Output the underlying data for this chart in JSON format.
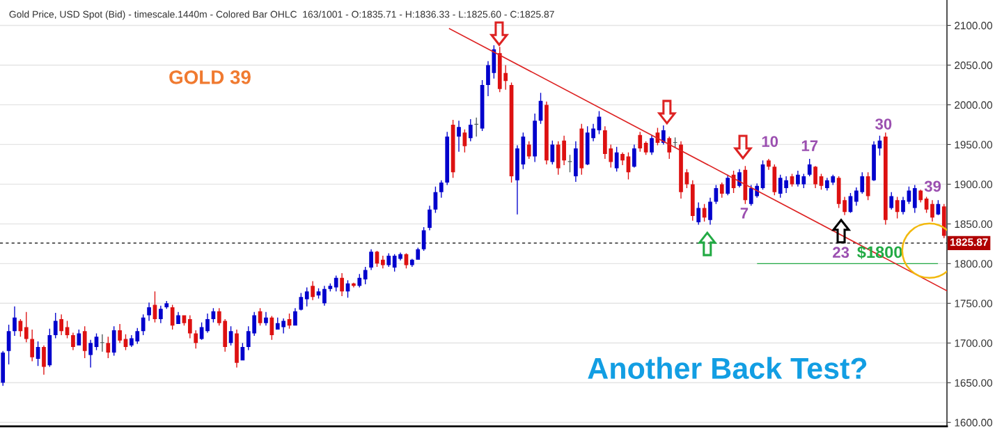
{
  "chart_data": {
    "type": "candlestick",
    "title": "Gold Price, USD Spot (Bid) - timescale.1440m - Colored Bar OHLC  163/1001 - O:1835.71 - H:1836.33 - L:1825.60 - C:1825.87",
    "categories": [
      null,
      null,
      null,
      null,
      null,
      null,
      null,
      null,
      null,
      null,
      null,
      null,
      null,
      null,
      null,
      null,
      null,
      null,
      null,
      null,
      null,
      null,
      null,
      null,
      null,
      null,
      null,
      null,
      null,
      null,
      null,
      null,
      null,
      null,
      null,
      null,
      null,
      null,
      null,
      null,
      null,
      null,
      null,
      null,
      null,
      null,
      null,
      null,
      null,
      null,
      null,
      null,
      null,
      null,
      null,
      null,
      null,
      null,
      null,
      null,
      null,
      null,
      null,
      null,
      null,
      null,
      null,
      null,
      null,
      null,
      null,
      null,
      null,
      null,
      null,
      null,
      null,
      null,
      null,
      null,
      null,
      null,
      null,
      null,
      null,
      null,
      null,
      null,
      null,
      null,
      null,
      null,
      null,
      null,
      null,
      null,
      null,
      null,
      null,
      null,
      null,
      null,
      null,
      null,
      null,
      null,
      null,
      null,
      null,
      null,
      null,
      null,
      null,
      null,
      null,
      null,
      null,
      null,
      null,
      null,
      null,
      null,
      null,
      null,
      null,
      null,
      null,
      null,
      null,
      null,
      null,
      null,
      null,
      null,
      null,
      null,
      null,
      null,
      null,
      null,
      null,
      null,
      null,
      null,
      null,
      null,
      null,
      null,
      null,
      null,
      null,
      null,
      null,
      null,
      null,
      null,
      null,
      null,
      null,
      null,
      null,
      null
    ],
    "ohlc": [
      [
        1650,
        1690,
        1646,
        1688
      ],
      [
        1690,
        1723,
        1673,
        1715
      ],
      [
        1715,
        1746,
        1709,
        1732
      ],
      [
        1728,
        1730,
        1708,
        1715
      ],
      [
        1720,
        1739,
        1701,
        1705
      ],
      [
        1705,
        1717,
        1677,
        1682
      ],
      [
        1680,
        1702,
        1671,
        1695
      ],
      [
        1695,
        1697,
        1660,
        1670
      ],
      [
        1672,
        1718,
        1670,
        1710
      ],
      [
        1710,
        1738,
        1706,
        1728
      ],
      [
        1730,
        1736,
        1710,
        1715
      ],
      [
        1720,
        1728,
        1706,
        1710
      ],
      [
        1710,
        1713,
        1691,
        1695
      ],
      [
        1697,
        1717,
        1697,
        1712
      ],
      [
        1715,
        1721,
        1681,
        1690
      ],
      [
        1685,
        1704,
        1669,
        1700
      ],
      [
        1695,
        1712,
        1691,
        1708
      ],
      [
        1700,
        1711,
        1689,
        1701
      ],
      [
        1700,
        1708,
        1681,
        1688
      ],
      [
        1688,
        1721,
        1684,
        1716
      ],
      [
        1716,
        1724,
        1700,
        1703
      ],
      [
        1705,
        1711,
        1691,
        1695
      ],
      [
        1697,
        1710,
        1695,
        1706
      ],
      [
        1702,
        1719,
        1699,
        1715
      ],
      [
        1715,
        1736,
        1710,
        1732
      ],
      [
        1735,
        1751,
        1728,
        1745
      ],
      [
        1748,
        1765,
        1726,
        1730
      ],
      [
        1730,
        1747,
        1725,
        1743
      ],
      [
        1745,
        1753,
        1743,
        1750
      ],
      [
        1745,
        1748,
        1717,
        1722
      ],
      [
        1724,
        1739,
        1724,
        1735
      ],
      [
        1735,
        1735,
        1722,
        1725
      ],
      [
        1730,
        1735,
        1706,
        1712
      ],
      [
        1712,
        1716,
        1693,
        1700
      ],
      [
        1705,
        1726,
        1704,
        1720
      ],
      [
        1715,
        1737,
        1713,
        1730
      ],
      [
        1730,
        1744,
        1726,
        1740
      ],
      [
        1740,
        1744,
        1722,
        1725
      ],
      [
        1728,
        1730,
        1689,
        1695
      ],
      [
        1700,
        1721,
        1697,
        1715
      ],
      [
        1712,
        1717,
        1669,
        1675
      ],
      [
        1678,
        1700,
        1678,
        1695
      ],
      [
        1695,
        1721,
        1691,
        1715
      ],
      [
        1712,
        1739,
        1709,
        1735
      ],
      [
        1740,
        1744,
        1722,
        1725
      ],
      [
        1725,
        1739,
        1722,
        1732
      ],
      [
        1732,
        1734,
        1704,
        1710
      ],
      [
        1717,
        1732,
        1717,
        1725
      ],
      [
        1720,
        1731,
        1712,
        1728
      ],
      [
        1730,
        1737,
        1718,
        1722
      ],
      [
        1722,
        1744,
        1722,
        1740
      ],
      [
        1742,
        1763,
        1741,
        1758
      ],
      [
        1755,
        1770,
        1746,
        1765
      ],
      [
        1772,
        1778,
        1754,
        1758
      ],
      [
        1760,
        1769,
        1756,
        1765
      ],
      [
        1750,
        1772,
        1747,
        1768
      ],
      [
        1768,
        1775,
        1765,
        1772
      ],
      [
        1770,
        1785,
        1765,
        1782
      ],
      [
        1782,
        1788,
        1759,
        1765
      ],
      [
        1765,
        1779,
        1757,
        1775
      ],
      [
        1775,
        1776,
        1770,
        1772
      ],
      [
        1772,
        1787,
        1770,
        1782
      ],
      [
        1780,
        1796,
        1774,
        1792
      ],
      [
        1795,
        1818,
        1792,
        1815
      ],
      [
        1815,
        1816,
        1796,
        1800
      ],
      [
        1805,
        1810,
        1794,
        1798
      ],
      [
        1798,
        1813,
        1796,
        1810
      ],
      [
        1795,
        1812,
        1790,
        1810
      ],
      [
        1806,
        1814,
        1804,
        1812
      ],
      [
        1812,
        1813,
        1794,
        1798
      ],
      [
        1798,
        1806,
        1796,
        1805
      ],
      [
        1805,
        1820,
        1805,
        1818
      ],
      [
        1818,
        1846,
        1816,
        1842
      ],
      [
        1845,
        1873,
        1842,
        1868
      ],
      [
        1868,
        1897,
        1864,
        1890
      ],
      [
        1890,
        1905,
        1883,
        1902
      ],
      [
        1902,
        1966,
        1899,
        1960
      ],
      [
        1975,
        1981,
        1908,
        1915
      ],
      [
        1960,
        1980,
        1941,
        1972
      ],
      [
        1965,
        1969,
        1940,
        1948
      ],
      [
        1958,
        1982,
        1954,
        1975
      ],
      [
        1975,
        1984,
        1960,
        1976
      ],
      [
        1970,
        2031,
        1967,
        2025
      ],
      [
        2025,
        2055,
        2011,
        2050
      ],
      [
        2040,
        2075,
        2033,
        2070
      ],
      [
        2065,
        2073,
        2016,
        2020
      ],
      [
        2040,
        2050,
        2019,
        2030
      ],
      [
        2025,
        2028,
        1902,
        1910
      ],
      [
        1905,
        1949,
        1862,
        1945
      ],
      [
        1925,
        1965,
        1919,
        1960
      ],
      [
        1950,
        1954,
        1932,
        1935
      ],
      [
        1935,
        1989,
        1928,
        1980
      ],
      [
        1980,
        2015,
        1976,
        2005
      ],
      [
        2000,
        2004,
        1925,
        1930
      ],
      [
        1928,
        1955,
        1925,
        1950
      ],
      [
        1950,
        1954,
        1912,
        1920
      ],
      [
        1955,
        1961,
        1924,
        1930
      ],
      [
        1928,
        1937,
        1915,
        1929
      ],
      [
        1910,
        1954,
        1903,
        1945
      ],
      [
        1970,
        1976,
        1912,
        1920
      ],
      [
        1925,
        1973,
        1924,
        1965
      ],
      [
        1958,
        1976,
        1954,
        1970
      ],
      [
        1968,
        1992,
        1963,
        1985
      ],
      [
        1968,
        1973,
        1932,
        1938
      ],
      [
        1945,
        1950,
        1921,
        1928
      ],
      [
        1920,
        1947,
        1916,
        1940
      ],
      [
        1938,
        1940,
        1924,
        1930
      ],
      [
        1935,
        1940,
        1906,
        1915
      ],
      [
        1922,
        1950,
        1921,
        1945
      ],
      [
        1962,
        1966,
        1941,
        1945
      ],
      [
        1952,
        1954,
        1937,
        1940
      ],
      [
        1940,
        1962,
        1937,
        1958
      ],
      [
        1965,
        1971,
        1949,
        1952
      ],
      [
        1952,
        1974,
        1950,
        1968
      ],
      [
        1958,
        1960,
        1932,
        1940
      ],
      [
        1952,
        1959,
        1946,
        1953
      ],
      [
        1950,
        1954,
        1882,
        1890
      ],
      [
        1915,
        1919,
        1895,
        1900
      ],
      [
        1900,
        1905,
        1854,
        1860
      ],
      [
        1852,
        1877,
        1849,
        1870
      ],
      [
        1870,
        1875,
        1853,
        1858
      ],
      [
        1855,
        1883,
        1849,
        1878
      ],
      [
        1878,
        1899,
        1875,
        1895
      ],
      [
        1900,
        1902,
        1883,
        1888
      ],
      [
        1888,
        1912,
        1886,
        1908
      ],
      [
        1912,
        1917,
        1889,
        1895
      ],
      [
        1898,
        1919,
        1896,
        1915
      ],
      [
        1918,
        1923,
        1875,
        1880
      ],
      [
        1875,
        1899,
        1873,
        1895
      ],
      [
        1885,
        1901,
        1883,
        1898
      ],
      [
        1895,
        1930,
        1893,
        1925
      ],
      [
        1930,
        1932,
        1918,
        1922
      ],
      [
        1922,
        1925,
        1886,
        1890
      ],
      [
        1888,
        1912,
        1883,
        1908
      ],
      [
        1895,
        1910,
        1889,
        1905
      ],
      [
        1910,
        1913,
        1897,
        1900
      ],
      [
        1900,
        1917,
        1897,
        1912
      ],
      [
        1900,
        1913,
        1895,
        1910
      ],
      [
        1912,
        1932,
        1910,
        1925
      ],
      [
        1922,
        1923,
        1895,
        1900
      ],
      [
        1910,
        1913,
        1893,
        1898
      ],
      [
        1895,
        1908,
        1892,
        1905
      ],
      [
        1902,
        1912,
        1899,
        1910
      ],
      [
        1908,
        1910,
        1870,
        1875
      ],
      [
        1880,
        1884,
        1861,
        1865
      ],
      [
        1865,
        1889,
        1864,
        1885
      ],
      [
        1878,
        1896,
        1873,
        1892
      ],
      [
        1890,
        1915,
        1888,
        1910
      ],
      [
        1910,
        1915,
        1880,
        1885
      ],
      [
        1905,
        1954,
        1904,
        1950
      ],
      [
        1945,
        1961,
        1936,
        1955
      ],
      [
        1960,
        1965,
        1849,
        1855
      ],
      [
        1870,
        1890,
        1868,
        1885
      ],
      [
        1880,
        1884,
        1857,
        1865
      ],
      [
        1865,
        1884,
        1862,
        1880
      ],
      [
        1878,
        1897,
        1875,
        1892
      ],
      [
        1870,
        1899,
        1864,
        1895
      ],
      [
        1892,
        1893,
        1877,
        1880
      ],
      [
        1882,
        1884,
        1864,
        1868
      ],
      [
        1875,
        1880,
        1853,
        1858
      ],
      [
        1862,
        1880,
        1861,
        1875
      ],
      [
        1872,
        1875,
        1832,
        1835
      ]
    ],
    "colors": [
      "#0000cc",
      "#0000cc",
      "#0000cc",
      "#dd1111",
      "#dd1111",
      "#dd1111",
      "#0000cc",
      "#dd1111",
      "#0000cc",
      "#0000cc",
      "#dd1111",
      "#dd1111",
      "#dd1111",
      "#0000cc",
      "#dd1111",
      "#0000cc",
      "#0000cc",
      "#4d5b5b",
      "#dd1111",
      "#0000cc",
      "#dd1111",
      "#dd1111",
      "#0000cc",
      "#0000cc",
      "#0000cc",
      "#0000cc",
      "#dd1111",
      "#0000cc",
      "#0000cc",
      "#dd1111",
      "#0000cc",
      "#dd1111",
      "#dd1111",
      "#dd1111",
      "#0000cc",
      "#0000cc",
      "#0000cc",
      "#dd1111",
      "#dd1111",
      "#0000cc",
      "#dd1111",
      "#0000cc",
      "#0000cc",
      "#0000cc",
      "#dd1111",
      "#0000cc",
      "#dd1111",
      "#0000cc",
      "#0000cc",
      "#dd1111",
      "#0000cc",
      "#0000cc",
      "#0000cc",
      "#dd1111",
      "#0000cc",
      "#0000cc",
      "#0000cc",
      "#0000cc",
      "#dd1111",
      "#0000cc",
      "#dd1111",
      "#0000cc",
      "#0000cc",
      "#0000cc",
      "#dd1111",
      "#dd1111",
      "#0000cc",
      "#0000cc",
      "#0000cc",
      "#dd1111",
      "#0000cc",
      "#0000cc",
      "#0000cc",
      "#0000cc",
      "#0000cc",
      "#0000cc",
      "#0000cc",
      "#dd1111",
      "#0000cc",
      "#dd1111",
      "#0000cc",
      "#4d5b5b",
      "#0000cc",
      "#0000cc",
      "#0000cc",
      "#dd1111",
      "#dd1111",
      "#dd1111",
      "#0000cc",
      "#0000cc",
      "#dd1111",
      "#0000cc",
      "#0000cc",
      "#dd1111",
      "#0000cc",
      "#dd1111",
      "#dd1111",
      "#4d5b5b",
      "#0000cc",
      "#dd1111",
      "#0000cc",
      "#0000cc",
      "#0000cc",
      "#dd1111",
      "#dd1111",
      "#0000cc",
      "#dd1111",
      "#dd1111",
      "#0000cc",
      "#dd1111",
      "#dd1111",
      "#0000cc",
      "#dd1111",
      "#0000cc",
      "#dd1111",
      "#4d5b5b",
      "#dd1111",
      "#dd1111",
      "#dd1111",
      "#0000cc",
      "#dd1111",
      "#0000cc",
      "#0000cc",
      "#dd1111",
      "#0000cc",
      "#dd1111",
      "#0000cc",
      "#dd1111",
      "#0000cc",
      "#0000cc",
      "#0000cc",
      "#dd1111",
      "#dd1111",
      "#0000cc",
      "#0000cc",
      "#dd1111",
      "#0000cc",
      "#0000cc",
      "#0000cc",
      "#dd1111",
      "#dd1111",
      "#0000cc",
      "#0000cc",
      "#dd1111",
      "#dd1111",
      "#0000cc",
      "#0000cc",
      "#0000cc",
      "#dd1111",
      "#0000cc",
      "#0000cc",
      "#dd1111",
      "#0000cc",
      "#dd1111",
      "#0000cc",
      "#0000cc",
      "#0000cc",
      "#dd1111",
      "#dd1111",
      "#dd1111",
      "#0000cc",
      "#dd1111"
    ],
    "ylim": [
      1595,
      2132
    ],
    "yticks": [
      {
        "value": 1600,
        "label": "1600.00"
      },
      {
        "value": 1650,
        "label": "1650.00"
      },
      {
        "value": 1700,
        "label": "1700.00"
      },
      {
        "value": 1750,
        "label": "1750.00"
      },
      {
        "value": 1800,
        "label": "1800.00"
      },
      {
        "value": 1850,
        "label": "1850.00"
      },
      {
        "value": 1900,
        "label": "1900.00"
      },
      {
        "value": 1950,
        "label": "1950.00"
      },
      {
        "value": 2000,
        "label": "2000.00"
      },
      {
        "value": 2050,
        "label": "2050.00"
      },
      {
        "value": 2100,
        "label": "2100.00"
      }
    ],
    "tick_labels": "y",
    "grid": true,
    "ref_lines": [
      {
        "axis": "y",
        "value": 1825.87,
        "label": "1825.87",
        "color": "#000000",
        "line_style": "dashed"
      },
      {
        "axis": "y",
        "value": 1800,
        "label": "$1800",
        "color": "#22aa44",
        "line_style": "solid"
      }
    ],
    "annotations": [
      "GOLD 39",
      "Another Back Test?",
      "10",
      "17",
      "30",
      "7",
      "23",
      "39"
    ]
  }
}
